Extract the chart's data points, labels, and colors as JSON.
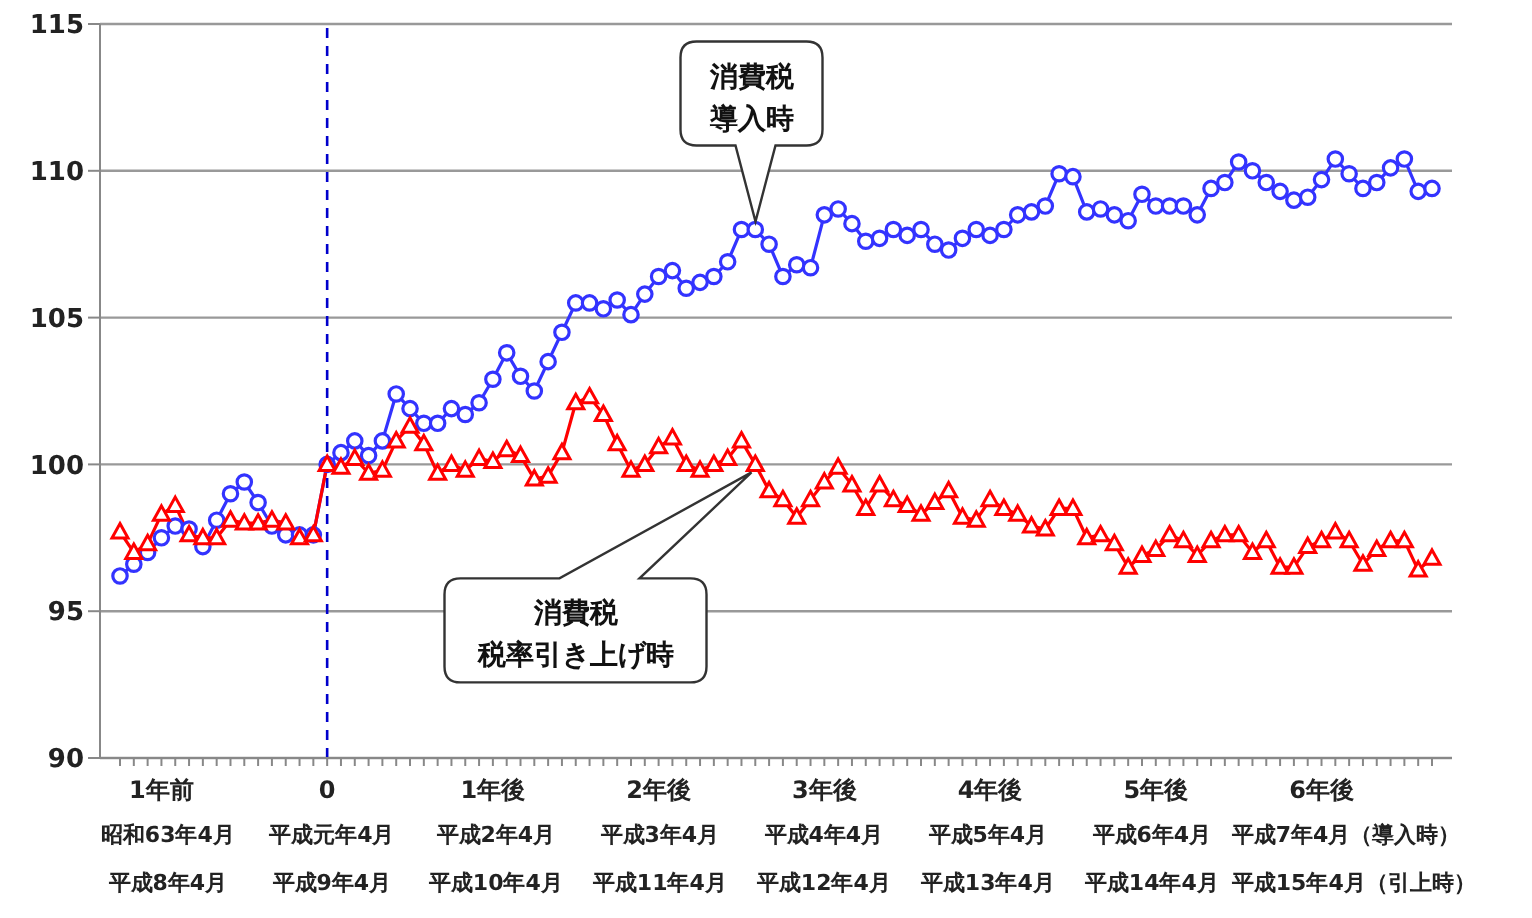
{
  "chart_data": {
    "type": "line",
    "categories": [
      null,
      null,
      null,
      "1年前",
      null,
      null,
      null,
      null,
      null,
      null,
      null,
      null,
      null,
      null,
      null,
      "0",
      null,
      null,
      null,
      null,
      null,
      null,
      null,
      null,
      null,
      null,
      null,
      "1年後",
      null,
      null,
      null,
      null,
      null,
      null,
      null,
      null,
      null,
      null,
      null,
      "2年後",
      null,
      null,
      null,
      null,
      null,
      null,
      null,
      null,
      null,
      null,
      null,
      "3年後",
      null,
      null,
      null,
      null,
      null,
      null,
      null,
      null,
      null,
      null,
      null,
      "4年後",
      null,
      null,
      null,
      null,
      null,
      null,
      null,
      null,
      null,
      null,
      null,
      "5年後",
      null,
      null,
      null,
      null,
      null,
      null,
      null,
      null,
      null,
      null,
      null,
      "6年後",
      null,
      null,
      null,
      null,
      null,
      null,
      null,
      null
    ],
    "series": [
      {
        "color": "#3333ff",
        "marker": "circle",
        "values": [
          96.2,
          96.6,
          97.0,
          97.5,
          97.9,
          97.8,
          97.2,
          98.1,
          99.0,
          99.4,
          98.7,
          97.9,
          97.6,
          97.6,
          97.6,
          100.0,
          100.4,
          100.8,
          100.3,
          100.8,
          102.4,
          101.9,
          101.4,
          101.4,
          101.9,
          101.7,
          102.1,
          102.9,
          103.8,
          103.0,
          102.5,
          103.5,
          104.5,
          105.5,
          105.5,
          105.3,
          105.6,
          105.1,
          105.8,
          106.4,
          106.6,
          106.0,
          106.2,
          106.4,
          106.9,
          108.0,
          108.0,
          107.5,
          106.4,
          106.8,
          106.7,
          108.5,
          108.7,
          108.2,
          107.6,
          107.7,
          108.0,
          107.8,
          108.0,
          107.5,
          107.3,
          107.7,
          108.0,
          107.8,
          108.0,
          108.5,
          108.6,
          108.8,
          109.9,
          109.8,
          108.6,
          108.7,
          108.5,
          108.3,
          109.2,
          108.8,
          108.8,
          108.8,
          108.5,
          109.4,
          109.6,
          110.3,
          110.0,
          109.6,
          109.3,
          109.0,
          109.1,
          109.7,
          110.4,
          109.9,
          109.4,
          109.6,
          110.1,
          110.4,
          109.3,
          109.4
        ]
      },
      {
        "color": "#ff0000",
        "marker": "triangle",
        "values": [
          97.7,
          97.0,
          97.3,
          98.3,
          98.6,
          97.6,
          97.5,
          97.5,
          98.1,
          98.0,
          98.0,
          98.1,
          98.0,
          97.5,
          97.6,
          100.0,
          99.9,
          100.2,
          99.7,
          99.8,
          100.8,
          101.3,
          100.7,
          99.7,
          100.0,
          99.8,
          100.2,
          100.1,
          100.5,
          100.3,
          99.5,
          99.6,
          100.4,
          102.1,
          102.3,
          101.7,
          100.7,
          99.8,
          100.0,
          100.6,
          100.9,
          100.0,
          99.8,
          100.0,
          100.2,
          100.8,
          100.0,
          99.1,
          98.8,
          98.2,
          98.8,
          99.4,
          99.9,
          99.3,
          98.5,
          99.3,
          98.8,
          98.6,
          98.3,
          98.7,
          99.1,
          98.2,
          98.1,
          98.8,
          98.5,
          98.3,
          97.9,
          97.8,
          98.5,
          98.5,
          97.5,
          97.6,
          97.3,
          96.5,
          96.9,
          97.1,
          97.6,
          97.4,
          96.9,
          97.4,
          97.6,
          97.6,
          97.0,
          97.4,
          96.5,
          96.5,
          97.2,
          97.4,
          97.7,
          97.4,
          96.6,
          97.1,
          97.4,
          97.4,
          96.4,
          96.8
        ]
      }
    ],
    "ylim": [
      90,
      115
    ],
    "yticks": [
      90,
      95,
      100,
      105,
      110,
      115
    ],
    "grid": "y",
    "line_style": "solid",
    "ref_lines": [
      {
        "axis": "x",
        "value": "0",
        "color": "#0000cc",
        "line_style": "dashed"
      }
    ],
    "annotations": [
      "消費税",
      "導入時",
      "消費税",
      "税率引き上げ時",
      "昭和63年4月",
      "平成元年4月",
      "平成2年4月",
      "平成3年4月",
      "平成4年4月",
      "平成5年4月",
      "平成6年4月",
      "平成7年4月（導入時）",
      "平成8年4月",
      "平成9年4月",
      "平成10年4月",
      "平成11年4月",
      "平成12年4月",
      "平成13年4月",
      "平成14年4月",
      "平成15年4月（引上時）"
    ]
  }
}
